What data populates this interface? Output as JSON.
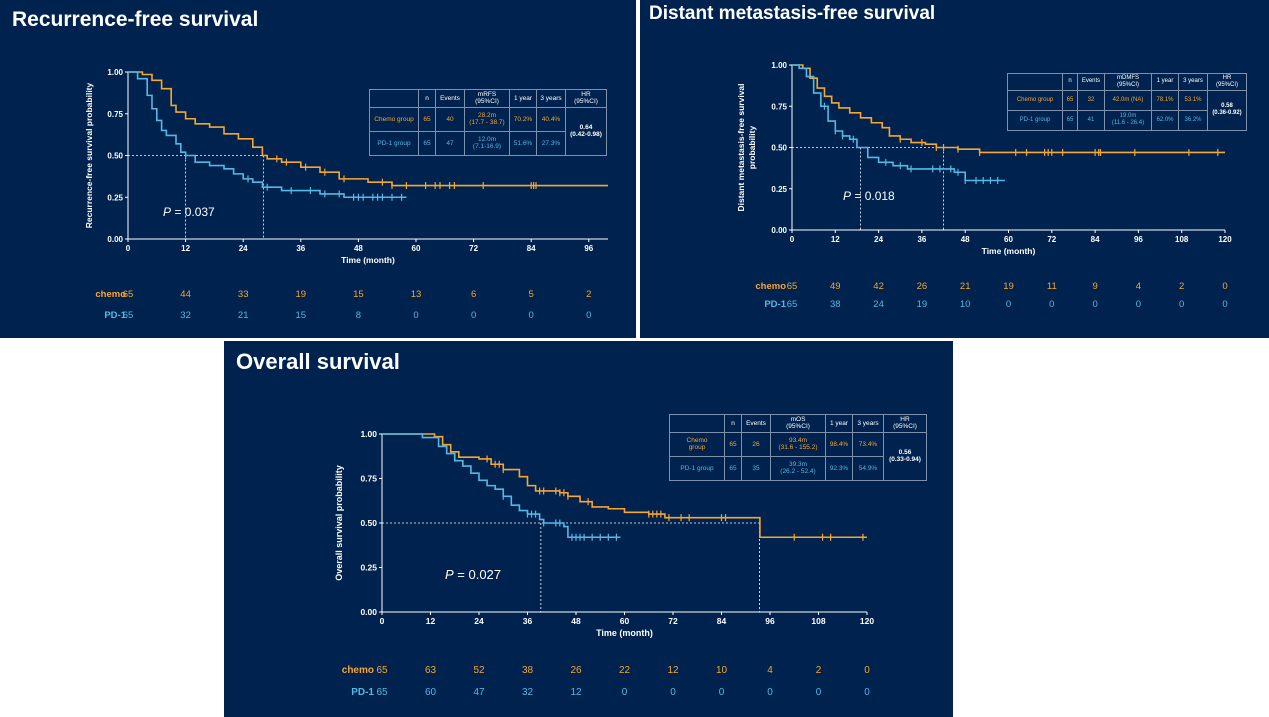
{
  "colors": {
    "chemo": "#f6a631",
    "pd1": "#55b9e4",
    "background": "#00224e",
    "axis": "#ffffff"
  },
  "panels": {
    "rfs": {
      "title": "Recurrence-free survival",
      "p_label": "P",
      "p_value": " = 0.037",
      "table": {
        "headers": [
          "",
          "n",
          "Events",
          "mRFS\n(95%CI)",
          "1 year",
          "3 years",
          "HR\n(95%CI)"
        ],
        "rows": [
          [
            "Chemo group",
            "65",
            "40",
            "28.2m\n(17.7 - 38.7)",
            "70.2%",
            "40.4%"
          ],
          [
            "PD-1 group",
            "65",
            "47",
            "12.0m\n(7.1-16.9)",
            "51.6%",
            "27.3%"
          ]
        ],
        "hr": "0.64\n(0.42-0.98)"
      },
      "risk": {
        "chemo_label": "chemo",
        "pd1_label": "PD-1",
        "chemo": [
          "65",
          "44",
          "33",
          "19",
          "15",
          "13",
          "6",
          "5",
          "2"
        ],
        "pd1": [
          "65",
          "32",
          "21",
          "15",
          "8",
          "0",
          "0",
          "0",
          "0"
        ]
      }
    },
    "dmfs": {
      "title": "Distant metastasis-free survival",
      "p_label": "P",
      "p_value": " = 0.018",
      "table": {
        "headers": [
          "",
          "n",
          "Events",
          "mDMFS\n(95%CI)",
          "1 year",
          "3 years",
          "HR\n(95%CI)"
        ],
        "rows": [
          [
            "Chemo group",
            "65",
            "32",
            "42.0m (NA)",
            "78.1%",
            "53.1%"
          ],
          [
            "PD-1 group",
            "65",
            "41",
            "19.0m\n(11.6 - 26.4)",
            "62.0%",
            "36.2%"
          ]
        ],
        "hr": "0.58\n(0.36-0.92)"
      },
      "risk": {
        "chemo_label": "chemo",
        "pd1_label": "PD-1",
        "chemo": [
          "65",
          "49",
          "42",
          "26",
          "21",
          "19",
          "11",
          "9",
          "4",
          "2",
          "0"
        ],
        "pd1": [
          "65",
          "38",
          "24",
          "19",
          "10",
          "0",
          "0",
          "0",
          "0",
          "0",
          "0"
        ]
      }
    },
    "os": {
      "title": "Overall survival",
      "p_label": "P",
      "p_value": " = 0.027",
      "table": {
        "headers": [
          "",
          "n",
          "Events",
          "mOS\n(95%CI)",
          "1 year",
          "3 years",
          "HR\n(95%CI)"
        ],
        "rows": [
          [
            "Chemo\ngroup",
            "65",
            "26",
            "93.4m\n(31.6 - 155.2)",
            "98.4%",
            "73.4%"
          ],
          [
            "PD-1 group",
            "65",
            "35",
            "39.3m\n(26.2 - 52.4)",
            "92.3%",
            "54.9%"
          ]
        ],
        "hr": "0.56\n(0.33-0.94)"
      },
      "risk": {
        "chemo_label": "chemo",
        "pd1_label": "PD-1",
        "chemo": [
          "65",
          "63",
          "52",
          "38",
          "26",
          "22",
          "12",
          "10",
          "4",
          "2",
          "0"
        ],
        "pd1": [
          "65",
          "60",
          "47",
          "32",
          "12",
          "0",
          "0",
          "0",
          "0",
          "0",
          "0"
        ]
      }
    }
  },
  "chart_data": [
    {
      "type": "line",
      "subtype": "kaplan-meier",
      "title": "Recurrence-free survival",
      "xlabel": "Time (month)",
      "ylabel": "Recurrence-free survival probability",
      "xlim": [
        0,
        100
      ],
      "ylim": [
        0,
        1
      ],
      "xticks": [
        "0",
        "12",
        "24",
        "36",
        "48",
        "60",
        "72",
        "84",
        "96"
      ],
      "yticks": [
        "0.00",
        "0.25",
        "0.50",
        "0.75",
        "1.00"
      ],
      "series": [
        {
          "name": "Chemo group",
          "color": "#f6a631",
          "points": [
            [
              0,
              1
            ],
            [
              3,
              0.985
            ],
            [
              5,
              0.95
            ],
            [
              7,
              0.9
            ],
            [
              9,
              0.8
            ],
            [
              10,
              0.76
            ],
            [
              12,
              0.72
            ],
            [
              14,
              0.69
            ],
            [
              17,
              0.67
            ],
            [
              20,
              0.63
            ],
            [
              23,
              0.6
            ],
            [
              26,
              0.55
            ],
            [
              28,
              0.5
            ],
            [
              29,
              0.48
            ],
            [
              32,
              0.46
            ],
            [
              36,
              0.43
            ],
            [
              40,
              0.4
            ],
            [
              44,
              0.36
            ],
            [
              50,
              0.34
            ],
            [
              55,
              0.32
            ],
            [
              100,
              0.32
            ]
          ],
          "censors": [
            31,
            33,
            37,
            41,
            45,
            53,
            55,
            58,
            62,
            64,
            65,
            67,
            68,
            74,
            84,
            84.5,
            85
          ]
        },
        {
          "name": "PD-1 group",
          "color": "#55b9e4",
          "points": [
            [
              0,
              1
            ],
            [
              2,
              0.96
            ],
            [
              4,
              0.86
            ],
            [
              5,
              0.78
            ],
            [
              6,
              0.71
            ],
            [
              7,
              0.65
            ],
            [
              8,
              0.62
            ],
            [
              10,
              0.57
            ],
            [
              11,
              0.52
            ],
            [
              12,
              0.5
            ],
            [
              14,
              0.46
            ],
            [
              17,
              0.44
            ],
            [
              20,
              0.42
            ],
            [
              22,
              0.39
            ],
            [
              24,
              0.36
            ],
            [
              26,
              0.34
            ],
            [
              28,
              0.31
            ],
            [
              32,
              0.29
            ],
            [
              40,
              0.27
            ],
            [
              45,
              0.25
            ],
            [
              58,
              0.25
            ]
          ],
          "censors": [
            12,
            25,
            29,
            34,
            38,
            41,
            44,
            47,
            48,
            49,
            51,
            52,
            53,
            55,
            57
          ]
        }
      ],
      "median_lines": [
        12,
        28.2
      ]
    },
    {
      "type": "line",
      "subtype": "kaplan-meier",
      "title": "Distant metastasis-free survival",
      "xlabel": "Time (month)",
      "ylabel": "Distant metastasis-free survival probability",
      "xlim": [
        0,
        120
      ],
      "ylim": [
        0,
        1
      ],
      "xticks": [
        "0",
        "12",
        "24",
        "36",
        "48",
        "60",
        "72",
        "84",
        "96",
        "108",
        "120"
      ],
      "yticks": [
        "0.00",
        "0.25",
        "0.50",
        "0.75",
        "1.00"
      ],
      "series": [
        {
          "name": "Chemo group",
          "color": "#f6a631",
          "points": [
            [
              0,
              1
            ],
            [
              3,
              0.98
            ],
            [
              5,
              0.92
            ],
            [
              7,
              0.86
            ],
            [
              9,
              0.81
            ],
            [
              11,
              0.77
            ],
            [
              13,
              0.74
            ],
            [
              16,
              0.71
            ],
            [
              19,
              0.68
            ],
            [
              22,
              0.65
            ],
            [
              25,
              0.62
            ],
            [
              27,
              0.57
            ],
            [
              30,
              0.55
            ],
            [
              33,
              0.53
            ],
            [
              37,
              0.52
            ],
            [
              40,
              0.5
            ],
            [
              46,
              0.49
            ],
            [
              52,
              0.47
            ],
            [
              120,
              0.47
            ]
          ],
          "censors": [
            30,
            36,
            40,
            42,
            46,
            52,
            62,
            65,
            70,
            71,
            72,
            75,
            84,
            85,
            85.5,
            95,
            110,
            118
          ]
        },
        {
          "name": "PD-1 group",
          "color": "#55b9e4",
          "points": [
            [
              0,
              1
            ],
            [
              2,
              0.98
            ],
            [
              4,
              0.93
            ],
            [
              6,
              0.83
            ],
            [
              8,
              0.75
            ],
            [
              10,
              0.66
            ],
            [
              12,
              0.6
            ],
            [
              14,
              0.57
            ],
            [
              16,
              0.55
            ],
            [
              18,
              0.5
            ],
            [
              21,
              0.44
            ],
            [
              24,
              0.41
            ],
            [
              28,
              0.39
            ],
            [
              32,
              0.37
            ],
            [
              38,
              0.37
            ],
            [
              45,
              0.35
            ],
            [
              48,
              0.3
            ],
            [
              59,
              0.3
            ]
          ],
          "censors": [
            9,
            12,
            14,
            17,
            26,
            30,
            33,
            39,
            41,
            44,
            46,
            48,
            51,
            53,
            55,
            57
          ]
        }
      ],
      "median_lines": [
        19,
        42
      ]
    },
    {
      "type": "line",
      "subtype": "kaplan-meier",
      "title": "Overall survival",
      "xlabel": "Time (month)",
      "ylabel": "Overall survival probability",
      "xlim": [
        0,
        120
      ],
      "ylim": [
        0,
        1
      ],
      "xticks": [
        "0",
        "12",
        "24",
        "36",
        "48",
        "60",
        "72",
        "84",
        "96",
        "108",
        "120"
      ],
      "yticks": [
        "0.00",
        "0.25",
        "0.50",
        "0.75",
        "1.00"
      ],
      "series": [
        {
          "name": "Chemo group",
          "color": "#f6a631",
          "points": [
            [
              0,
              1
            ],
            [
              13,
              0.985
            ],
            [
              15,
              0.94
            ],
            [
              17,
              0.9
            ],
            [
              19,
              0.87
            ],
            [
              24,
              0.86
            ],
            [
              27,
              0.83
            ],
            [
              30,
              0.8
            ],
            [
              34,
              0.76
            ],
            [
              36,
              0.71
            ],
            [
              38,
              0.68
            ],
            [
              44,
              0.67
            ],
            [
              46,
              0.65
            ],
            [
              49,
              0.62
            ],
            [
              52,
              0.59
            ],
            [
              56,
              0.58
            ],
            [
              60,
              0.56
            ],
            [
              66,
              0.55
            ],
            [
              70,
              0.53
            ],
            [
              93,
              0.53
            ],
            [
              93.5,
              0.42
            ],
            [
              120,
              0.42
            ]
          ],
          "censors": [
            26,
            28,
            29,
            30,
            39,
            40,
            43,
            44,
            45,
            46,
            51,
            66,
            67,
            68,
            69,
            71,
            74,
            76,
            84,
            85,
            102,
            109,
            111,
            119
          ]
        },
        {
          "name": "PD-1 group",
          "color": "#55b9e4",
          "points": [
            [
              0,
              1
            ],
            [
              10,
              0.98
            ],
            [
              14,
              0.93
            ],
            [
              16,
              0.89
            ],
            [
              18,
              0.85
            ],
            [
              20,
              0.82
            ],
            [
              22,
              0.78
            ],
            [
              24,
              0.74
            ],
            [
              26,
              0.71
            ],
            [
              28,
              0.69
            ],
            [
              30,
              0.65
            ],
            [
              32,
              0.6
            ],
            [
              34,
              0.57
            ],
            [
              36,
              0.55
            ],
            [
              39,
              0.52
            ],
            [
              40,
              0.5
            ],
            [
              45,
              0.48
            ],
            [
              46,
              0.42
            ],
            [
              59,
              0.42
            ]
          ],
          "censors": [
            30,
            36,
            37,
            38,
            40,
            43,
            44,
            47,
            48,
            49,
            50,
            52,
            54,
            56,
            58
          ]
        }
      ],
      "median_lines": [
        39.3,
        93.4
      ]
    }
  ]
}
